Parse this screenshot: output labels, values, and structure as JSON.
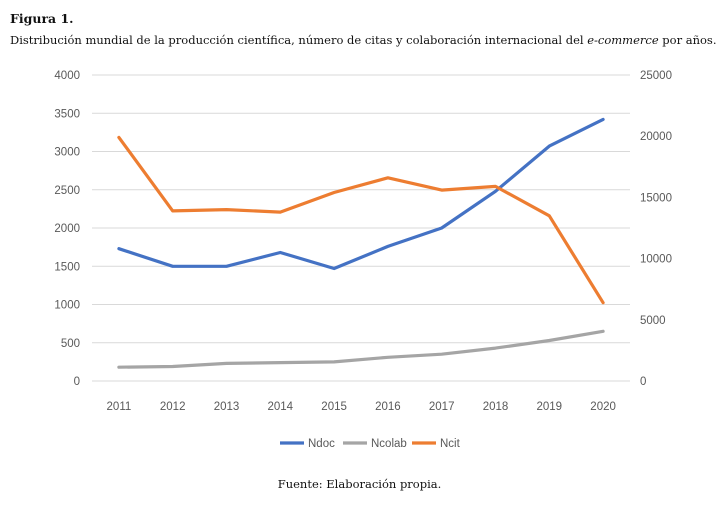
{
  "figure": {
    "label": "Figura 1.",
    "title_pre": "Distribución mundial de la producción científica, número de citas y colaboración internacional del ",
    "title_em": "e-commerce",
    "title_post": " por años.",
    "source": "Fuente: Elaboración propia."
  },
  "colors": {
    "Ndoc": "#4472C4",
    "Ncolab": "#A5A5A5",
    "Ncit": "#ED7D31",
    "grid": "#D9D9D9"
  },
  "chart_data": {
    "type": "line",
    "categories": [
      "2011",
      "2012",
      "2013",
      "2014",
      "2015",
      "2016",
      "2017",
      "2018",
      "2019",
      "2020"
    ],
    "y_left": {
      "min": 0,
      "max": 4000,
      "step": 500,
      "ticks": [
        "0",
        "500",
        "1000",
        "1500",
        "2000",
        "2500",
        "3000",
        "3500",
        "4000"
      ]
    },
    "y_right": {
      "min": 0,
      "max": 25000,
      "step": 5000,
      "ticks": [
        "0",
        "5000",
        "10000",
        "15000",
        "20000",
        "25000"
      ]
    },
    "grid": true,
    "legend": "bottom",
    "series": [
      {
        "name": "Ndoc",
        "axis": "left",
        "values": [
          1730,
          1500,
          1500,
          1680,
          1470,
          1760,
          2000,
          2480,
          3070,
          3420
        ]
      },
      {
        "name": "Ncolab",
        "axis": "left",
        "values": [
          180,
          190,
          230,
          240,
          250,
          310,
          350,
          430,
          530,
          650
        ]
      },
      {
        "name": "Ncit",
        "axis": "right",
        "values": [
          19900,
          13900,
          14000,
          13800,
          15400,
          16600,
          15600,
          15900,
          13500,
          6400
        ]
      }
    ]
  }
}
